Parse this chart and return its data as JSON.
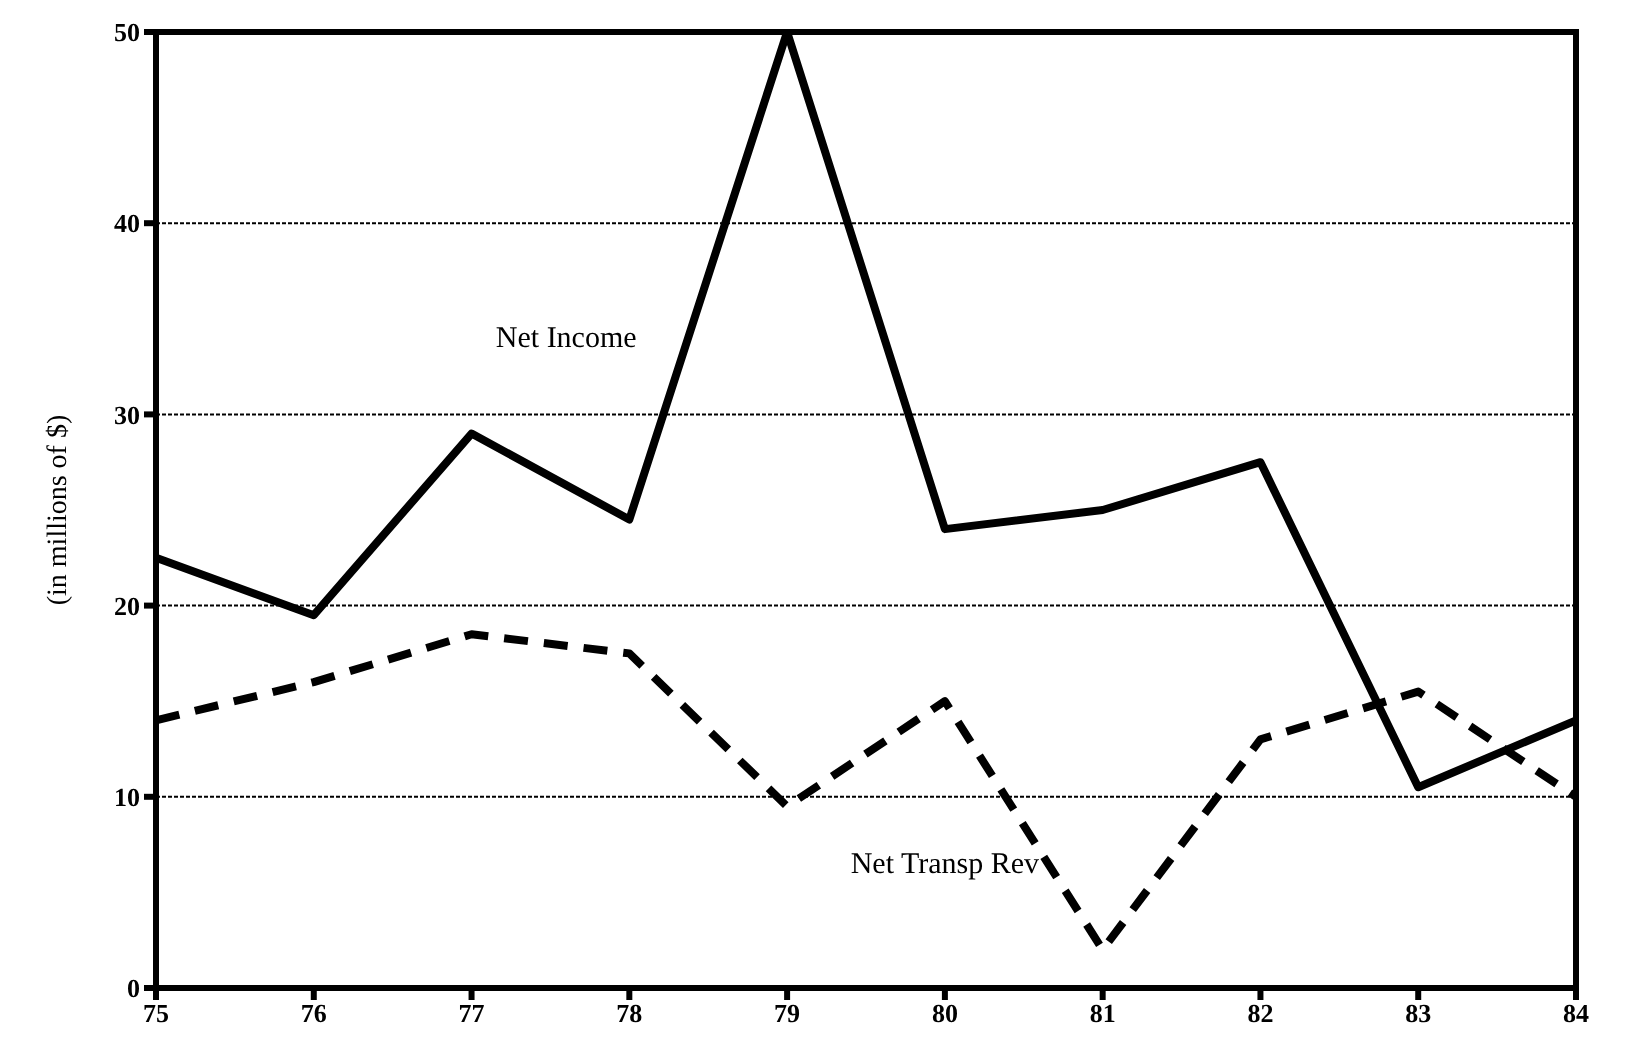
{
  "chart_data": {
    "type": "line",
    "ylabel": "(in millions of $)",
    "x": [
      75,
      76,
      77,
      78,
      79,
      80,
      81,
      82,
      83,
      84
    ],
    "series": [
      {
        "name": "Net Income",
        "color": "#000000",
        "line_style": "solid",
        "values": [
          22.5,
          19.5,
          29,
          24.5,
          50,
          24,
          25,
          27.5,
          10.5,
          14
        ]
      },
      {
        "name": "Net Transp Rev",
        "color": "#000000",
        "line_style": "dashed",
        "values": [
          14,
          16,
          18.5,
          17.5,
          9.5,
          15,
          2,
          13,
          15.5,
          10
        ]
      }
    ],
    "xlim": [
      75,
      84
    ],
    "xticks": [
      75,
      76,
      77,
      78,
      79,
      80,
      81,
      82,
      83,
      84
    ],
    "ylim": [
      0,
      50
    ],
    "yticks": [
      0,
      10,
      20,
      30,
      40,
      50
    ],
    "grid": "y",
    "legend": false,
    "marker": "none"
  }
}
